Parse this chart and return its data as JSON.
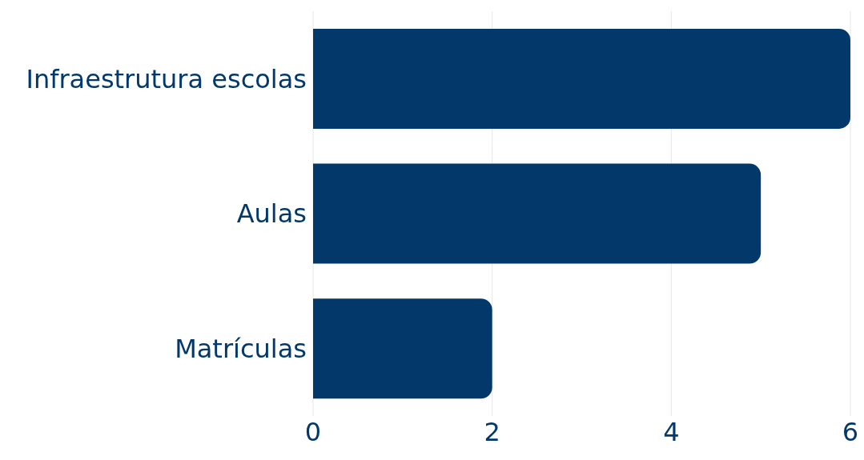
{
  "chart_data": {
    "type": "bar",
    "orientation": "horizontal",
    "categories": [
      "Infraestrutura escolas",
      "Aulas",
      "Matrículas"
    ],
    "values": [
      6,
      5,
      2
    ],
    "color": "#02386a",
    "xlim": [
      0,
      6
    ],
    "xticks": [
      0,
      2,
      4,
      6
    ],
    "grid": "x"
  }
}
